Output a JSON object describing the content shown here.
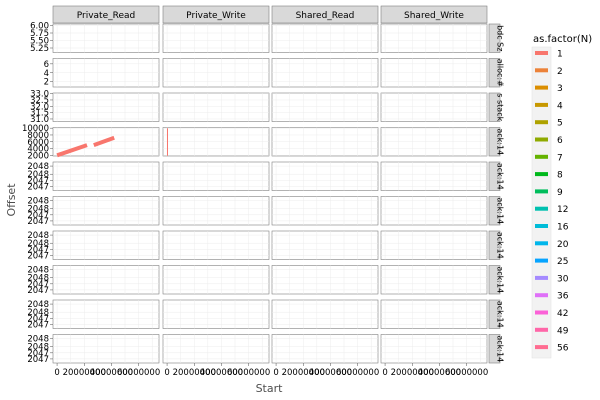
{
  "chart_data": {
    "type": "line",
    "xlabel": "Start",
    "ylabel": "Offset",
    "x_ticks": [
      "0",
      "20000000",
      "40000000",
      "60000000"
    ],
    "x_tick_values": [
      0,
      20000000,
      40000000,
      60000000
    ],
    "xlim": [
      -3000000,
      75000000
    ],
    "columns": [
      "Private_Read",
      "Private_Write",
      "Shared_Read",
      "Shared_Write"
    ],
    "rows": [
      {
        "strip": "bdc Sz",
        "ylim": [
          5.1,
          6.05
        ],
        "ticks": [
          "6.00",
          "5.75",
          "5.50",
          "5.25"
        ],
        "tick_values": [
          6.0,
          5.75,
          5.5,
          5.25
        ]
      },
      {
        "strip": "alloc:#",
        "ylim": [
          0.8,
          7.2
        ],
        "ticks": [
          "6",
          "4",
          "2"
        ],
        "tick_values": [
          6,
          4,
          2
        ]
      },
      {
        "strip": "s stack",
        "ylim": [
          30.8,
          33.05
        ],
        "ticks": [
          "33.0",
          "32.5",
          "32.0",
          "31.5",
          "31.0"
        ],
        "tick_values": [
          33.0,
          32.5,
          32.0,
          31.5,
          31.0
        ]
      },
      {
        "strip": "ack:14",
        "ylim": [
          1800,
          10200
        ],
        "ticks": [
          "10000",
          "8000",
          "6000",
          "4000",
          "2000"
        ],
        "tick_values": [
          10000,
          8000,
          6000,
          4000,
          2000
        ]
      },
      {
        "strip": "ack:14",
        "ylim": [
          2046.8,
          2048.2
        ],
        "ticks": [
          "2048",
          "2048",
          "2047",
          "2047"
        ],
        "tick_values": [
          2048.0,
          2047.6,
          2047.3,
          2047.0
        ]
      },
      {
        "strip": "ack:14",
        "ylim": [
          2046.8,
          2048.2
        ],
        "ticks": [
          "2048",
          "2048",
          "2047",
          "2047"
        ],
        "tick_values": [
          2048.0,
          2047.6,
          2047.3,
          2047.0
        ]
      },
      {
        "strip": "ack:14",
        "ylim": [
          2046.8,
          2048.2
        ],
        "ticks": [
          "2048",
          "2048",
          "2047",
          "2047"
        ],
        "tick_values": [
          2048.0,
          2047.6,
          2047.3,
          2047.0
        ]
      },
      {
        "strip": "ack:14",
        "ylim": [
          2046.8,
          2048.2
        ],
        "ticks": [
          "2048",
          "2048",
          "2047",
          "2047"
        ],
        "tick_values": [
          2048.0,
          2047.6,
          2047.3,
          2047.0
        ]
      },
      {
        "strip": "ack:14",
        "ylim": [
          2046.8,
          2048.2
        ],
        "ticks": [
          "2048",
          "2048",
          "2047",
          "2047"
        ],
        "tick_values": [
          2048.0,
          2047.6,
          2047.3,
          2047.0
        ]
      },
      {
        "strip": "ack:14",
        "ylim": [
          2046.8,
          2048.2
        ],
        "ticks": [
          "2048",
          "2048",
          "2047",
          "2047"
        ],
        "tick_values": [
          2048.0,
          2047.6,
          2047.3,
          2047.0
        ]
      }
    ],
    "series": [
      {
        "row": 3,
        "col": 0,
        "N": "1",
        "color": "#F8766D",
        "x": [
          0,
          22000000
        ],
        "y": [
          2000,
          5000
        ]
      },
      {
        "row": 3,
        "col": 0,
        "N": "1",
        "color": "#F8766D",
        "x": [
          27000000,
          42000000
        ],
        "y": [
          5000,
          7200
        ]
      },
      {
        "row": 3,
        "col": 1,
        "N": "1",
        "color": "#F8766D",
        "x": [
          300000,
          300000
        ],
        "y": [
          1900,
          10000
        ]
      }
    ],
    "legend": {
      "title": "as.factor(N)",
      "position": "right",
      "items": [
        {
          "label": "1",
          "color": "#F8766D"
        },
        {
          "label": "2",
          "color": "#EC8239"
        },
        {
          "label": "3",
          "color": "#DB8E00"
        },
        {
          "label": "4",
          "color": "#C79800"
        },
        {
          "label": "5",
          "color": "#AEA200"
        },
        {
          "label": "6",
          "color": "#8FAA00"
        },
        {
          "label": "7",
          "color": "#64B200"
        },
        {
          "label": "8",
          "color": "#00B81B"
        },
        {
          "label": "9",
          "color": "#00BD5C"
        },
        {
          "label": "12",
          "color": "#00C0AF"
        },
        {
          "label": "16",
          "color": "#00BCD8"
        },
        {
          "label": "20",
          "color": "#00B6EB"
        },
        {
          "label": "25",
          "color": "#06A4FF"
        },
        {
          "label": "30",
          "color": "#A58AFF"
        },
        {
          "label": "36",
          "color": "#DF70F8"
        },
        {
          "label": "42",
          "color": "#FB61D7"
        },
        {
          "label": "49",
          "color": "#FF66A8"
        },
        {
          "label": "56",
          "color": "#FF6C91"
        }
      ]
    },
    "grid": true
  }
}
